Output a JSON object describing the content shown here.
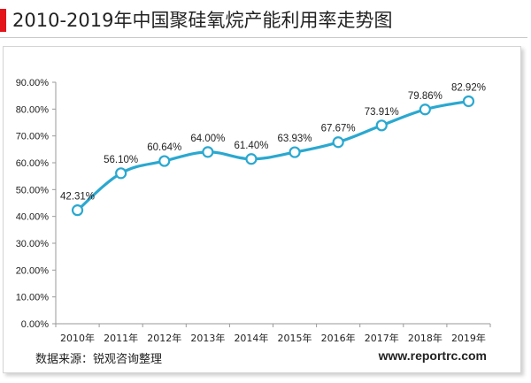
{
  "header": {
    "title": "2010-2019年中国聚硅氧烷产能利用率走势图",
    "accent_color": "#e3141a"
  },
  "footer": {
    "source": "数据来源：锐观咨询整理",
    "website": "www.reportrc.com"
  },
  "chart_data": {
    "type": "line",
    "title": "",
    "xlabel": "",
    "ylabel": "",
    "categories": [
      "2010年",
      "2011年",
      "2012年",
      "2013年",
      "2014年",
      "2015年",
      "2016年",
      "2017年",
      "2018年",
      "2019年"
    ],
    "series": [
      {
        "values": [
          42.31,
          56.1,
          60.64,
          64.0,
          61.4,
          63.93,
          67.67,
          73.91,
          79.86,
          82.92
        ],
        "labels": [
          "42.31%",
          "56.10%",
          "60.64%",
          "64.00%",
          "61.40%",
          "63.93%",
          "67.67%",
          "73.91%",
          "79.86%",
          "82.92%"
        ],
        "color": "#2aa8d0"
      }
    ],
    "ylim": [
      0,
      90
    ],
    "yticks": [
      0,
      10,
      20,
      30,
      40,
      50,
      60,
      70,
      80,
      90
    ],
    "ytick_labels": [
      "0.00%",
      "10.00%",
      "20.00%",
      "30.00%",
      "40.00%",
      "50.00%",
      "60.00%",
      "70.00%",
      "80.00%",
      "90.00%"
    ],
    "grid": false,
    "legend": "none"
  }
}
